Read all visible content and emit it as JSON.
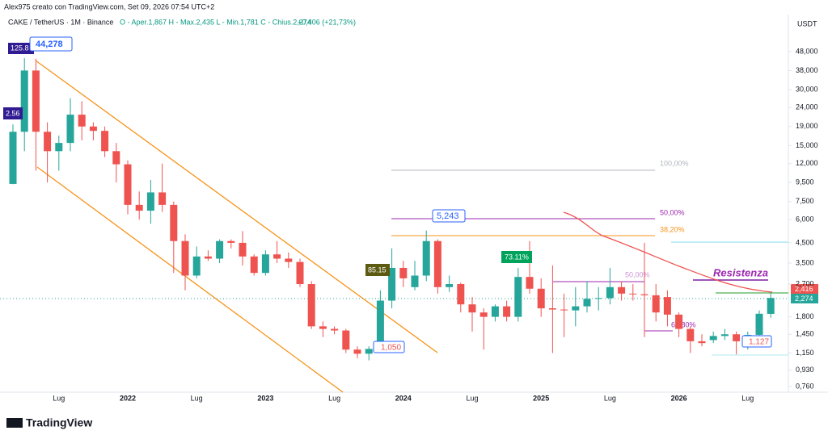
{
  "header": "Alex975 creato con TradingView.com, Set 09, 2026 07:54 UTC+2",
  "legend": {
    "symbol": "CAKE / TetherUS · 1M · Binance",
    "ohlc": "O - Aper.1,867  H - Max.2,435  L - Min.1,781  C - Chius.2,274",
    "change": "+0,406 (+21,73%)"
  },
  "brand": "TradingView",
  "chart_data": {
    "type": "candlestick",
    "log_scale": true,
    "up_color": "#26a69a",
    "down_color": "#ef5350",
    "y_unit": "USDT",
    "ylim": [
      0.708,
      74.5
    ],
    "yticks": [
      {
        "value": 48,
        "label": "48,000"
      },
      {
        "value": 38,
        "label": "38,000"
      },
      {
        "value": 30,
        "label": "30,000"
      },
      {
        "value": 24,
        "label": "24,000"
      },
      {
        "value": 19,
        "label": "19,000"
      },
      {
        "value": 15,
        "label": "15,000"
      },
      {
        "value": 12,
        "label": "12,000"
      },
      {
        "value": 9.5,
        "label": "9,500"
      },
      {
        "value": 7.5,
        "label": "7,500"
      },
      {
        "value": 6,
        "label": "6,000"
      },
      {
        "value": 4.5,
        "label": "4,500"
      },
      {
        "value": 3.5,
        "label": "3,500"
      },
      {
        "value": 2.7,
        "label": "2,700"
      },
      {
        "value": 1.8,
        "label": "1,800"
      },
      {
        "value": 1.45,
        "label": "1,450"
      },
      {
        "value": 1.15,
        "label": "1,150"
      },
      {
        "value": 0.93,
        "label": "0,930"
      },
      {
        "value": 0.76,
        "label": "0,760"
      }
    ],
    "categories": [
      null,
      null,
      null,
      null,
      "Lug",
      null,
      null,
      null,
      null,
      null,
      "2022",
      null,
      null,
      null,
      null,
      null,
      "Lug",
      null,
      null,
      null,
      null,
      null,
      "2023",
      null,
      null,
      null,
      null,
      null,
      "Lug",
      null,
      null,
      null,
      null,
      null,
      "2024",
      null,
      null,
      null,
      null,
      null,
      "Lug",
      null,
      null,
      null,
      null,
      null,
      "2025",
      null,
      null,
      null,
      null,
      null,
      "Lug",
      null,
      null,
      null,
      null,
      null,
      "2026",
      null,
      null,
      null,
      null,
      null,
      "Lug",
      null,
      null
    ],
    "open": [
      9.33,
      17.8,
      38,
      17.8,
      14,
      15.5,
      22,
      19,
      18,
      14,
      11.9,
      7.2,
      6.7,
      8.4,
      7.2,
      4.6,
      3.0,
      3.8,
      3.7,
      4.6,
      4.5,
      3.8,
      3.1,
      3.9,
      3.7,
      3.55,
      2.7,
      1.6,
      1.55,
      1.52,
      1.2,
      1.14,
      1.21,
      2.2,
      3.3,
      2.6,
      3.0,
      4.6,
      2.6,
      2.7,
      2.1,
      1.9,
      1.8,
      2.05,
      1.8,
      2.95,
      2.55,
      2.0,
      1.97,
      1.95,
      2.05,
      2.25,
      2.27,
      2.6,
      2.4,
      2.38,
      2.35,
      2.3,
      1.85,
      1.55,
      1.33,
      1.35,
      1.42,
      1.45,
      1.33,
      1.44,
      1.867
    ],
    "high": [
      19.5,
      44.278,
      44,
      20,
      17,
      27,
      26,
      20,
      19,
      15.5,
      12.5,
      8.5,
      9.8,
      12,
      7.5,
      5.0,
      4.3,
      4.1,
      4.7,
      4.7,
      5.2,
      3.9,
      4.1,
      4.6,
      4.0,
      3.7,
      2.8,
      1.7,
      1.6,
      1.55,
      1.25,
      1.25,
      2.5,
      4.2,
      3.6,
      3.6,
      5.243,
      4.7,
      3.0,
      2.75,
      2.3,
      2.0,
      2.1,
      2.2,
      3.3,
      4.6,
      2.9,
      3.4,
      2.4,
      2.6,
      2.8,
      2.6,
      3.3,
      2.8,
      2.7,
      4.5,
      2.7,
      2.5,
      1.9,
      1.6,
      1.45,
      1.5,
      1.55,
      1.5,
      1.5,
      1.95,
      2.435
    ],
    "low": [
      9.3,
      14,
      11,
      9.5,
      11,
      14,
      16,
      16,
      13,
      9.5,
      6.4,
      6.0,
      5.7,
      6.6,
      3.1,
      2.5,
      2.9,
      3.6,
      3.5,
      4.2,
      3.4,
      3.0,
      3.0,
      3.5,
      3.3,
      2.6,
      1.55,
      1.4,
      1.45,
      1.15,
      1.08,
      1.05,
      1.15,
      2.0,
      2.6,
      2.5,
      2.8,
      2.4,
      2.45,
      1.9,
      1.5,
      1.2,
      1.7,
      1.7,
      1.7,
      2.4,
      1.8,
      1.15,
      1.4,
      1.6,
      1.9,
      1.95,
      2.1,
      2.2,
      2.2,
      1.4,
      1.7,
      1.6,
      1.4,
      1.15,
      1.25,
      1.3,
      1.35,
      1.13,
      1.2,
      1.4,
      1.781
    ],
    "close": [
      17.8,
      38,
      17.8,
      14,
      15.5,
      22,
      19,
      18,
      14,
      11.9,
      7.2,
      6.7,
      8.4,
      7.2,
      4.6,
      3.0,
      3.8,
      3.7,
      4.6,
      4.5,
      3.8,
      3.1,
      3.9,
      3.7,
      3.55,
      2.7,
      1.6,
      1.55,
      1.52,
      1.2,
      1.14,
      1.21,
      2.2,
      3.3,
      2.9,
      3.0,
      4.6,
      2.6,
      2.7,
      2.1,
      1.9,
      1.8,
      2.05,
      1.8,
      2.95,
      2.55,
      2.0,
      1.97,
      1.95,
      2.05,
      2.25,
      2.27,
      2.6,
      2.4,
      2.38,
      2.35,
      1.9,
      1.85,
      1.55,
      1.33,
      1.3,
      1.42,
      1.45,
      1.33,
      1.44,
      1.87,
      2.274
    ],
    "annotations": {
      "ath": "44,278",
      "ath_tag": "125.8",
      "left_tag": "2.56",
      "high_2024": "5,243",
      "tag_2023": "85.15",
      "tag_2024": "73.11%",
      "low_2023": "1,050",
      "low_2026": "1,127",
      "resistance": "Resistenza",
      "fib_a": [
        "100,00%",
        "50,00%",
        "38,20%"
      ],
      "fib_b": [
        "50,00%",
        "61,80%"
      ],
      "price_resistance": "2,416",
      "price_last": "2,274"
    }
  }
}
